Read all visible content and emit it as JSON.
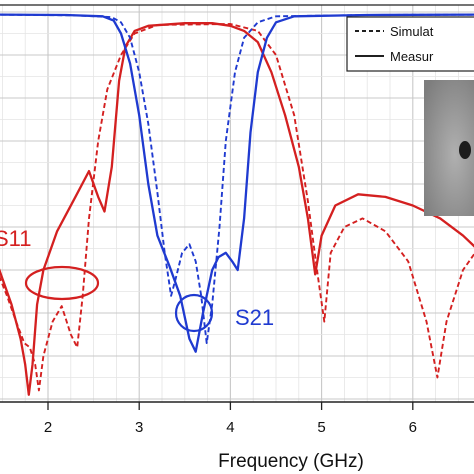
{
  "chart_data": {
    "type": "line",
    "xlabel": "Frequency (GHz)",
    "ylabel": "",
    "xlim": [
      1.45,
      6.72
    ],
    "ylim": [
      -45,
      0.5
    ],
    "x_ticks": [
      "2",
      "3",
      "4",
      "5",
      "6"
    ],
    "grid": true,
    "legend": {
      "placement": "top-right",
      "entries": [
        {
          "label": "Simulat",
          "style": "dashed"
        },
        {
          "label": "Measur",
          "style": "solid"
        }
      ]
    },
    "annotations": [
      {
        "text": "S11",
        "color": "#d42020"
      },
      {
        "text": "S21",
        "color": "#1f3ad0"
      }
    ],
    "colors": {
      "s11": "#d42020",
      "s21": "#1f3ad0",
      "grid": "#cfcfcf",
      "legend_line": "#000000"
    },
    "series": [
      {
        "key": "s11_measured",
        "color": "#d42020",
        "dash": false,
        "points": [
          [
            1.4,
            -28
          ],
          [
            1.5,
            -31
          ],
          [
            1.6,
            -34
          ],
          [
            1.7,
            -38
          ],
          [
            1.75,
            -41
          ],
          [
            1.79,
            -44.5
          ],
          [
            1.83,
            -41
          ],
          [
            1.88,
            -34
          ],
          [
            1.95,
            -30
          ],
          [
            2.1,
            -25.5
          ],
          [
            2.3,
            -21.5
          ],
          [
            2.45,
            -18.5
          ],
          [
            2.55,
            -21.5
          ],
          [
            2.62,
            -23.2
          ],
          [
            2.7,
            -18
          ],
          [
            2.78,
            -8
          ],
          [
            2.85,
            -4
          ],
          [
            2.95,
            -2.2
          ],
          [
            3.1,
            -1.6
          ],
          [
            3.5,
            -1.3
          ],
          [
            3.8,
            -1.3
          ],
          [
            4.0,
            -1.6
          ],
          [
            4.15,
            -2.2
          ],
          [
            4.3,
            -3.5
          ],
          [
            4.45,
            -7
          ],
          [
            4.6,
            -12
          ],
          [
            4.75,
            -18
          ],
          [
            4.85,
            -24
          ],
          [
            4.93,
            -30.5
          ],
          [
            5.0,
            -26
          ],
          [
            5.15,
            -22.5
          ],
          [
            5.4,
            -21.2
          ],
          [
            5.7,
            -21.5
          ],
          [
            6.0,
            -22.5
          ],
          [
            6.3,
            -24
          ],
          [
            6.55,
            -26
          ],
          [
            6.75,
            -28
          ]
        ]
      },
      {
        "key": "s11_simulated",
        "color": "#d42020",
        "dash": true,
        "points": [
          [
            1.4,
            -29
          ],
          [
            1.55,
            -33
          ],
          [
            1.65,
            -36
          ],
          [
            1.74,
            -38.5
          ],
          [
            1.8,
            -39
          ],
          [
            1.86,
            -41
          ],
          [
            1.9,
            -44
          ],
          [
            1.95,
            -40
          ],
          [
            2.05,
            -36
          ],
          [
            2.15,
            -34.2
          ],
          [
            2.25,
            -37.5
          ],
          [
            2.32,
            -39
          ],
          [
            2.38,
            -33
          ],
          [
            2.45,
            -24
          ],
          [
            2.55,
            -15
          ],
          [
            2.65,
            -9
          ],
          [
            2.8,
            -5
          ],
          [
            2.95,
            -2.5
          ],
          [
            3.2,
            -1.5
          ],
          [
            4.0,
            -1.4
          ],
          [
            4.3,
            -2.2
          ],
          [
            4.5,
            -5
          ],
          [
            4.7,
            -12
          ],
          [
            4.85,
            -22
          ],
          [
            4.95,
            -30
          ],
          [
            5.03,
            -36
          ],
          [
            5.1,
            -28
          ],
          [
            5.25,
            -25
          ],
          [
            5.45,
            -24
          ],
          [
            5.7,
            -25.5
          ],
          [
            5.95,
            -29
          ],
          [
            6.15,
            -36
          ],
          [
            6.27,
            -42.5
          ],
          [
            6.37,
            -36
          ],
          [
            6.55,
            -30
          ],
          [
            6.75,
            -27
          ]
        ]
      },
      {
        "key": "s21_measured",
        "color": "#1f3ad0",
        "dash": false,
        "points": [
          [
            1.4,
            -0.3
          ],
          [
            2.2,
            -0.35
          ],
          [
            2.6,
            -0.5
          ],
          [
            2.72,
            -1.0
          ],
          [
            2.8,
            -2.5
          ],
          [
            2.9,
            -6
          ],
          [
            3.0,
            -12
          ],
          [
            3.1,
            -20
          ],
          [
            3.2,
            -26
          ],
          [
            3.33,
            -29.5
          ],
          [
            3.45,
            -33
          ],
          [
            3.55,
            -38
          ],
          [
            3.62,
            -39.5
          ],
          [
            3.7,
            -35
          ],
          [
            3.8,
            -30
          ],
          [
            3.87,
            -28.5
          ],
          [
            3.95,
            -28
          ],
          [
            4.02,
            -29
          ],
          [
            4.08,
            -30
          ],
          [
            4.15,
            -24
          ],
          [
            4.22,
            -14
          ],
          [
            4.3,
            -7
          ],
          [
            4.4,
            -3
          ],
          [
            4.5,
            -1.2
          ],
          [
            4.7,
            -0.5
          ],
          [
            5.5,
            -0.35
          ],
          [
            6.75,
            -0.3
          ]
        ]
      },
      {
        "key": "s21_simulated",
        "color": "#1f3ad0",
        "dash": true,
        "points": [
          [
            1.4,
            -0.3
          ],
          [
            2.3,
            -0.4
          ],
          [
            2.7,
            -0.6
          ],
          [
            2.8,
            -1.2
          ],
          [
            2.9,
            -3
          ],
          [
            3.0,
            -7
          ],
          [
            3.1,
            -13
          ],
          [
            3.2,
            -21
          ],
          [
            3.28,
            -28
          ],
          [
            3.35,
            -33
          ],
          [
            3.4,
            -31
          ],
          [
            3.47,
            -28
          ],
          [
            3.55,
            -27
          ],
          [
            3.62,
            -29
          ],
          [
            3.68,
            -33
          ],
          [
            3.74,
            -38.5
          ],
          [
            3.8,
            -34
          ],
          [
            3.88,
            -25
          ],
          [
            3.95,
            -15
          ],
          [
            4.05,
            -7
          ],
          [
            4.15,
            -3
          ],
          [
            4.3,
            -1.2
          ],
          [
            4.5,
            -0.5
          ],
          [
            5.5,
            -0.35
          ],
          [
            6.75,
            -0.3
          ]
        ]
      }
    ]
  }
}
